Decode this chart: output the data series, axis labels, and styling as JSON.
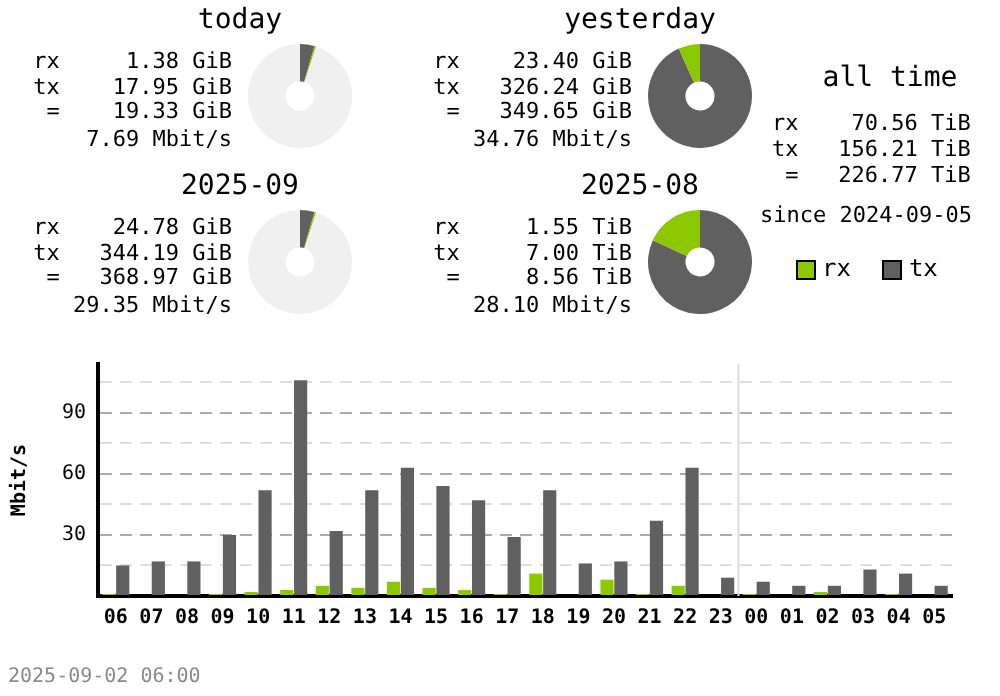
{
  "chart_data": [
    {
      "type": "donut",
      "title": "today",
      "categories": [
        null,
        null,
        null
      ],
      "values": [
        4.5,
        0.5,
        95
      ],
      "colors": [
        "#606060",
        "#8cc800",
        "#f0f0f0"
      ],
      "annotations": [
        "rx     1.38 GiB",
        "tx    17.95 GiB",
        "=    19.33 GiB",
        "7.69 Mbit/s"
      ]
    },
    {
      "type": "donut",
      "title": "yesterday",
      "categories": [
        null,
        null
      ],
      "values": [
        93.3,
        6.7
      ],
      "colors": [
        "#606060",
        "#8cc800"
      ],
      "annotations": [
        "rx    23.40 GiB",
        "tx   326.24 GiB",
        "=   349.65 GiB",
        "34.76 Mbit/s"
      ]
    },
    {
      "type": "other",
      "title": "all time",
      "annotations": [
        "rx    70.56 TiB",
        "tx   156.21 TiB",
        " =   226.77 TiB",
        "since 2024-09-05"
      ]
    },
    {
      "type": "donut",
      "title": "2025-09",
      "categories": [
        null,
        null,
        null
      ],
      "values": [
        4.5,
        0.5,
        95
      ],
      "colors": [
        "#606060",
        "#8cc800",
        "#f0f0f0"
      ],
      "annotations": [
        "rx    24.78 GiB",
        "tx   344.19 GiB",
        "=   368.97 GiB",
        "29.35 Mbit/s"
      ]
    },
    {
      "type": "donut",
      "title": "2025-08",
      "categories": [
        null,
        null
      ],
      "values": [
        81.9,
        18.1
      ],
      "colors": [
        "#606060",
        "#8cc800"
      ],
      "annotations": [
        "rx     1.55 TiB",
        "tx     7.00 TiB",
        "=     8.56 TiB",
        "28.10 Mbit/s"
      ]
    },
    {
      "type": "bar",
      "ylabel": "Mbit/s",
      "categories": [
        "06",
        "07",
        "08",
        "09",
        "10",
        "11",
        "12",
        "13",
        "14",
        "15",
        "16",
        "17",
        "18",
        "19",
        "20",
        "21",
        "22",
        "23",
        "00",
        "01",
        "02",
        "03",
        "04",
        "05"
      ],
      "series": [
        {
          "name": "rx",
          "color": "#8cc800",
          "values": [
            1,
            0,
            0,
            1,
            2,
            3,
            5,
            4,
            7,
            4,
            3,
            1,
            11,
            0,
            8,
            1,
            5,
            0,
            1,
            0,
            2,
            0,
            1,
            0
          ]
        },
        {
          "name": "tx",
          "color": "#606060",
          "values": [
            15,
            17,
            17,
            30,
            52,
            106,
            32,
            52,
            63,
            54,
            47,
            29,
            52,
            16,
            17,
            37,
            63,
            9,
            7,
            5,
            5,
            13,
            11,
            5
          ]
        }
      ],
      "ylim": [
        0,
        114
      ],
      "yticks": [
        {
          "value": 0,
          "label": null
        },
        {
          "value": 15,
          "label": null
        },
        30,
        {
          "value": 45,
          "label": null
        },
        60,
        {
          "value": 75,
          "label": null
        },
        90,
        {
          "value": 105,
          "label": null
        }
      ],
      "grid": "y",
      "legend": "top right",
      "ref_lines": [
        {
          "axis": "x",
          "value": "00",
          "color": "#dddddd"
        }
      ],
      "annotations": [
        "2025-09-02 06:00"
      ]
    }
  ]
}
